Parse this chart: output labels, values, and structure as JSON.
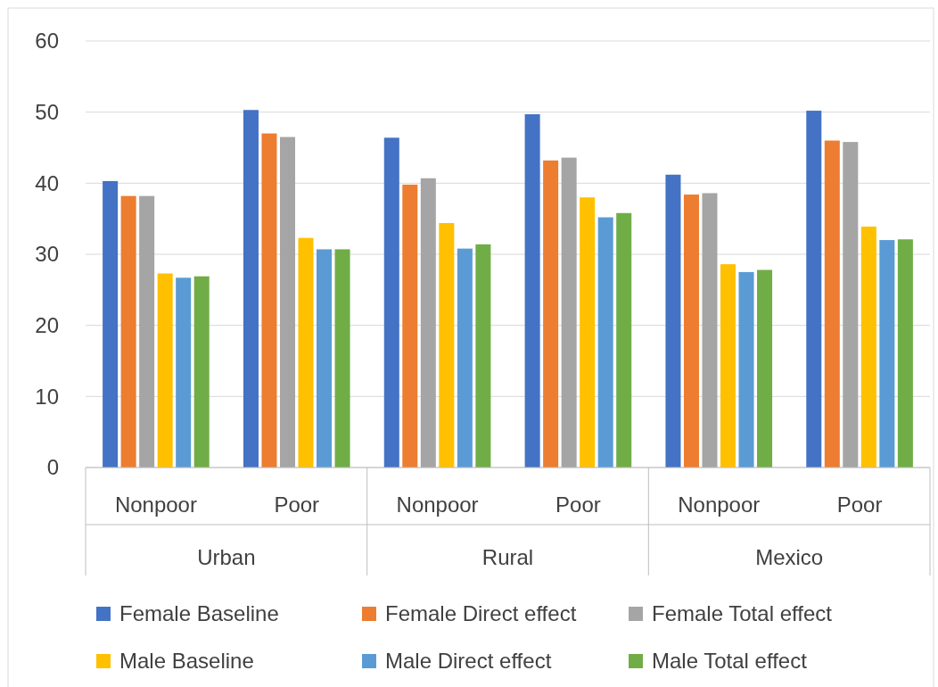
{
  "chart_data": {
    "type": "bar",
    "categories": [
      "Nonpoor",
      "Poor",
      "Nonpoor",
      "Poor",
      "Nonpoor",
      "Poor"
    ],
    "annotations": [
      "Urban",
      "Rural",
      "Mexico"
    ],
    "series": [
      {
        "name": "Female Baseline",
        "color": "#4472c4",
        "values": [
          40.3,
          50.3,
          46.4,
          49.7,
          41.2,
          50.2
        ]
      },
      {
        "name": "Female Direct effect",
        "color": "#ed7d31",
        "values": [
          38.2,
          47.0,
          39.8,
          43.2,
          38.4,
          46.0
        ]
      },
      {
        "name": "Female Total effect",
        "color": "#a5a5a5",
        "values": [
          38.2,
          46.5,
          40.7,
          43.6,
          38.6,
          45.8
        ]
      },
      {
        "name": "Male Baseline",
        "color": "#ffc000",
        "values": [
          27.3,
          32.3,
          34.4,
          38.0,
          28.6,
          33.9
        ]
      },
      {
        "name": "Male Direct effect",
        "color": "#5b9bd5",
        "values": [
          26.7,
          30.7,
          30.8,
          35.2,
          27.5,
          32.0
        ]
      },
      {
        "name": "Male Total effect",
        "color": "#70ad47",
        "values": [
          26.9,
          30.7,
          31.4,
          35.8,
          27.8,
          32.1
        ]
      }
    ],
    "ylim": [
      0,
      60
    ],
    "yticks": [
      0,
      10,
      20,
      30,
      40,
      50,
      60
    ],
    "grid": "y",
    "legend": "bottom"
  }
}
